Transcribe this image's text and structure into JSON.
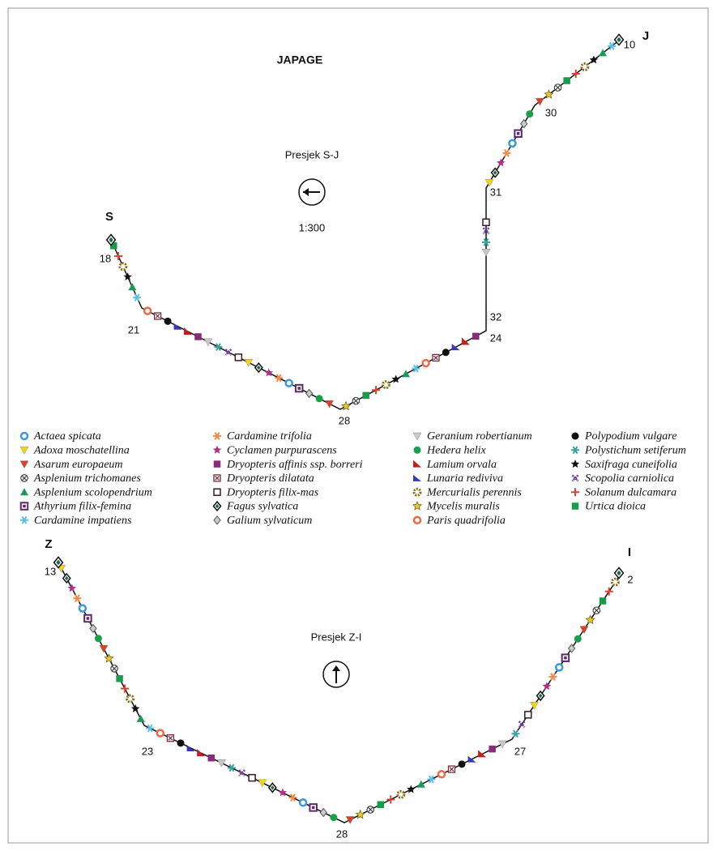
{
  "title": "JAPAGE",
  "transects": [
    {
      "label": "Presjek S-J",
      "scale": "1:300",
      "ends": [
        "S",
        "J"
      ],
      "stations": [
        "18",
        "21",
        "28",
        "24",
        "32",
        "31",
        "30",
        "10"
      ]
    },
    {
      "label": "Presjek Z-I",
      "ends": [
        "Z",
        "I"
      ],
      "stations": [
        "13",
        "23",
        "28",
        "27",
        "2"
      ]
    }
  ],
  "legend": [
    "Actaea spicata",
    "Adoxa moschatellina",
    "Asarum europaeum",
    "Asplenium trichomanes",
    "Asplenium scolopendrium",
    "Athyrium filix-femina",
    "Cardamine impatiens",
    "Cardamine trifolia",
    "Cyclamen purpurascens",
    "Dryopteris affinis ssp. borreri",
    "Dryopteris dilatata",
    "Dryopteris filix-mas",
    "Fagus sylvatica",
    "Galium sylvaticum",
    "Geranium robertianum",
    "Hedera helix",
    "Lamium orvala",
    "Lunaria rediviva",
    "Mercurialis perennis",
    "Mycelis muralis",
    "Paris quadrifolia",
    "Polypodium vulgare",
    "Polystichum setiferum",
    "Saxifraga cuneifolia",
    "Scopolia carniolica",
    "Solanum dulcamara",
    "Urtica dioica"
  ]
}
